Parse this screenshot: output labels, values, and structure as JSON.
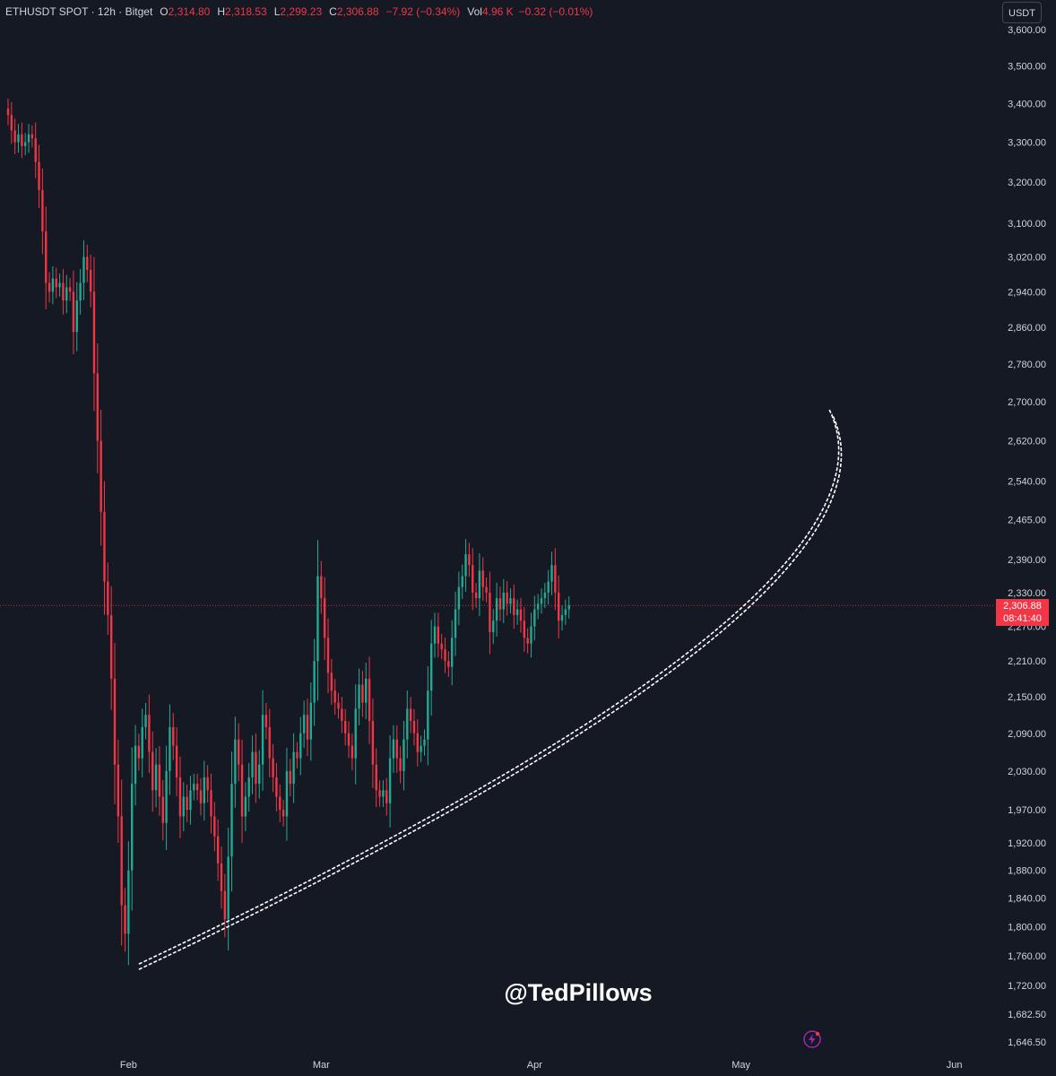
{
  "header": {
    "symbol": "ETHUSDT SPOT · 12h · Bitget",
    "o_label": "O",
    "o_value": "2,314.80",
    "h_label": "H",
    "h_value": "2,318.53",
    "l_label": "L",
    "l_value": "2,299.23",
    "c_label": "C",
    "c_value": "2,306.88",
    "change": "−7.92 (−0.34%)",
    "vol_label": "Vol",
    "vol_value": "4.96 K",
    "vol_change": "−0.32 (−0.01%)"
  },
  "currency_button": "USDT",
  "current_price": {
    "price": "2,306.88",
    "countdown": "08:41:40",
    "value": 2306.88
  },
  "watermark": "@TedPillows",
  "colors": {
    "background": "#151924",
    "up": "#22ab94",
    "down": "#f23645",
    "axis_text": "#d1d4dc",
    "curve": "#ffffff"
  },
  "icons": {
    "bolt": "lightning-bolt-icon"
  },
  "chart_data": {
    "type": "candlestick",
    "timeframe": "12h",
    "y_ticks": [
      "3,600.00",
      "3,500.00",
      "3,400.00",
      "3,300.00",
      "3,200.00",
      "3,100.00",
      "3,020.00",
      "2,940.00",
      "2,860.00",
      "2,780.00",
      "2,700.00",
      "2,620.00",
      "2,540.00",
      "2,465.00",
      "2,390.00",
      "2,330.00",
      "2,270.00",
      "2,210.00",
      "2,150.00",
      "2,090.00",
      "2,030.00",
      "1,970.00",
      "1,920.00",
      "1,880.00",
      "1,840.00",
      "1,800.00",
      "1,760.00",
      "1,720.00",
      "1,682.50",
      "1,646.50"
    ],
    "y_tick_values": [
      3600,
      3500,
      3400,
      3300,
      3200,
      3100,
      3020,
      2940,
      2860,
      2780,
      2700,
      2620,
      2540,
      2465,
      2390,
      2330,
      2270,
      2210,
      2150,
      2090,
      2030,
      1970,
      1920,
      1880,
      1840,
      1800,
      1760,
      1720,
      1682.5,
      1646.5
    ],
    "y_scale": "log",
    "x_ticks": [
      {
        "label": "Feb",
        "day": 31
      },
      {
        "label": "Mar",
        "day": 59
      },
      {
        "label": "Apr",
        "day": 90
      },
      {
        "label": "May",
        "day": 120
      },
      {
        "label": "Jun",
        "day": 151
      }
    ],
    "x_axis_start_day": 13.5,
    "x_axis_end_day": 153,
    "candles_start_day": 13.5,
    "candle_interval_days": 0.5,
    "closes": [
      3370,
      3330,
      3300,
      3320,
      3290,
      3300,
      3320,
      3310,
      3250,
      3180,
      3080,
      2960,
      2940,
      2970,
      2950,
      2960,
      2920,
      2950,
      2940,
      2850,
      2920,
      2960,
      3020,
      2990,
      2940,
      2760,
      2620,
      2480,
      2350,
      2290,
      2180,
      2040,
      1960,
      1830,
      1790,
      1880,
      2010,
      2070,
      2050,
      2100,
      2120,
      2060,
      2000,
      2040,
      1990,
      1950,
      2030,
      2100,
      2070,
      2020,
      1960,
      1990,
      1970,
      2000,
      2010,
      2000,
      1980,
      2020,
      2000,
      1960,
      1930,
      1890,
      1850,
      1810,
      1900,
      2010,
      2080,
      2040,
      1960,
      1990,
      2020,
      2060,
      2010,
      2040,
      2120,
      2100,
      2050,
      2020,
      1990,
      1970,
      1960,
      2030,
      2010,
      2060,
      2050,
      2090,
      2120,
      2080,
      2140,
      2210,
      2360,
      2320,
      2250,
      2190,
      2160,
      2140,
      2130,
      2110,
      2090,
      2070,
      2050,
      2130,
      2170,
      2140,
      2180,
      2110,
      2040,
      2000,
      1990,
      2000,
      1980,
      2050,
      2080,
      2050,
      2030,
      2080,
      2130,
      2110,
      2090,
      2060,
      2070,
      2080,
      2160,
      2240,
      2270,
      2240,
      2230,
      2210,
      2200,
      2250,
      2300,
      2340,
      2360,
      2400,
      2380,
      2330,
      2320,
      2370,
      2340,
      2330,
      2260,
      2280,
      2320,
      2300,
      2330,
      2310,
      2320,
      2290,
      2300,
      2280,
      2250,
      2240,
      2270,
      2300,
      2310,
      2320,
      2330,
      2350,
      2380,
      2330,
      2280,
      2290,
      2300,
      2307
    ],
    "support_curve": {
      "from": {
        "day": 32.5,
        "price": 1745
      },
      "to": {
        "day": 114.5,
        "price": 2240
      },
      "end": {
        "day": 133,
        "price": 2680
      }
    }
  }
}
